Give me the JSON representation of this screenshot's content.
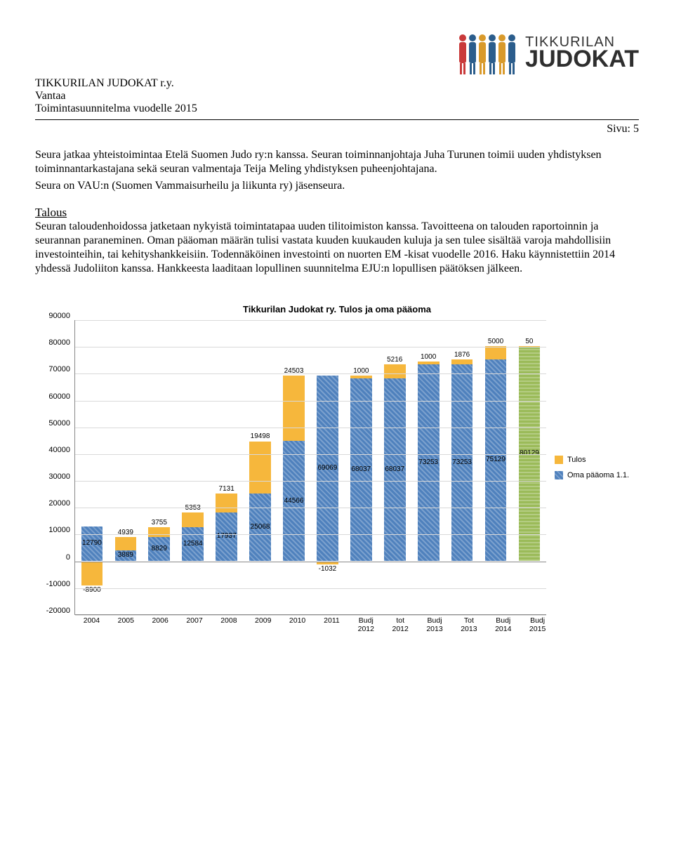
{
  "header": {
    "org_name": "TIKKURILAN JUDOKAT r.y.",
    "org_city": "Vantaa",
    "doc_title": "Toimintasuunnitelma vuodelle 2015",
    "page_label": "Sivu: 5",
    "logo_line1": "TIKKURILAN",
    "logo_line2": "JUDOKAT",
    "logo_colors": [
      "#c93a3a",
      "#2b5d8c",
      "#d99a2b",
      "#2b5d8c",
      "#d99a2b",
      "#2b5d8c"
    ]
  },
  "body": {
    "p1": "Seura jatkaa yhteistoimintaa Etelä Suomen Judo ry:n kanssa. Seuran toiminnanjohtaja Juha Turunen toimii uuden yhdistyksen toiminnantarkastajana sekä seuran valmentaja Teija Meling yhdistyksen puheenjohtajana.",
    "p2": "Seura on VAU:n (Suomen Vammaisurheilu ja liikunta ry) jäsenseura.",
    "section_head": "Talous",
    "p3": "Seuran taloudenhoidossa jatketaan nykyistä toimintatapaa uuden tilitoimiston kanssa. Tavoitteena on talouden raportoinnin ja seurannan paraneminen. Oman pääoman määrän tulisi vastata kuuden kuukauden kuluja ja sen tulee sisältää varoja mahdollisiin investointeihin, tai kehityshankkeisiin. Todennäköinen investointi on nuorten EM -kisat vuodelle 2016. Haku käynnistettiin 2014 yhdessä Judoliiton kanssa. Hankkeesta laaditaan lopullinen suunnitelma EJU:n lopullisen päätöksen jälkeen."
  },
  "chart": {
    "type": "stacked-bar",
    "title": "Tikkurilan Judokat ry. Tulos ja oma pääoma",
    "title_fontsize": 13,
    "ylim": [
      -20000,
      90000
    ],
    "ytick_step": 10000,
    "yticks": [
      90000,
      80000,
      70000,
      60000,
      50000,
      40000,
      30000,
      20000,
      10000,
      0,
      -10000,
      -20000
    ],
    "background_color": "#ffffff",
    "grid_color": "#d9d9d9",
    "axis_color": "#888888",
    "bar_width": 0.64,
    "colors": {
      "tulos": "#f6b73c",
      "oma_paaoma": "#4f81bd",
      "budj_2015": "#9bbb59"
    },
    "legend": {
      "position": "right",
      "items": [
        {
          "label": "Tulos",
          "color": "#f6b73c"
        },
        {
          "label": "Oma pääoma 1.1.",
          "color": "#4f81bd"
        }
      ]
    },
    "categories": [
      {
        "label": "2004",
        "oma": 12790,
        "tulos": -8900
      },
      {
        "label": "2005",
        "oma": 3889,
        "tulos": 4939
      },
      {
        "label": "2006",
        "oma": 8829,
        "tulos": 3755
      },
      {
        "label": "2007",
        "oma": 12584,
        "tulos": 5353
      },
      {
        "label": "2008",
        "oma": 17937,
        "tulos": 7131
      },
      {
        "label": "2009",
        "oma": 25068,
        "tulos": 19498
      },
      {
        "label": "2010",
        "oma": 44566,
        "tulos": 24503
      },
      {
        "label": "2011",
        "oma": 69069,
        "tulos": -1032
      },
      {
        "label": "Budj 2012",
        "oma": 68037,
        "tulos": 1000
      },
      {
        "label": "tot 2012",
        "oma": 68037,
        "tulos": 5216
      },
      {
        "label": "Budj 2013",
        "oma": 73253,
        "tulos": 1000
      },
      {
        "label": "Tot 2013",
        "oma": 73253,
        "tulos": 1876
      },
      {
        "label": "Budj 2014",
        "oma": 75129,
        "tulos": 5000
      },
      {
        "label": "Budj 2015",
        "oma": 80129,
        "tulos": 50,
        "budj_color": true
      }
    ]
  }
}
